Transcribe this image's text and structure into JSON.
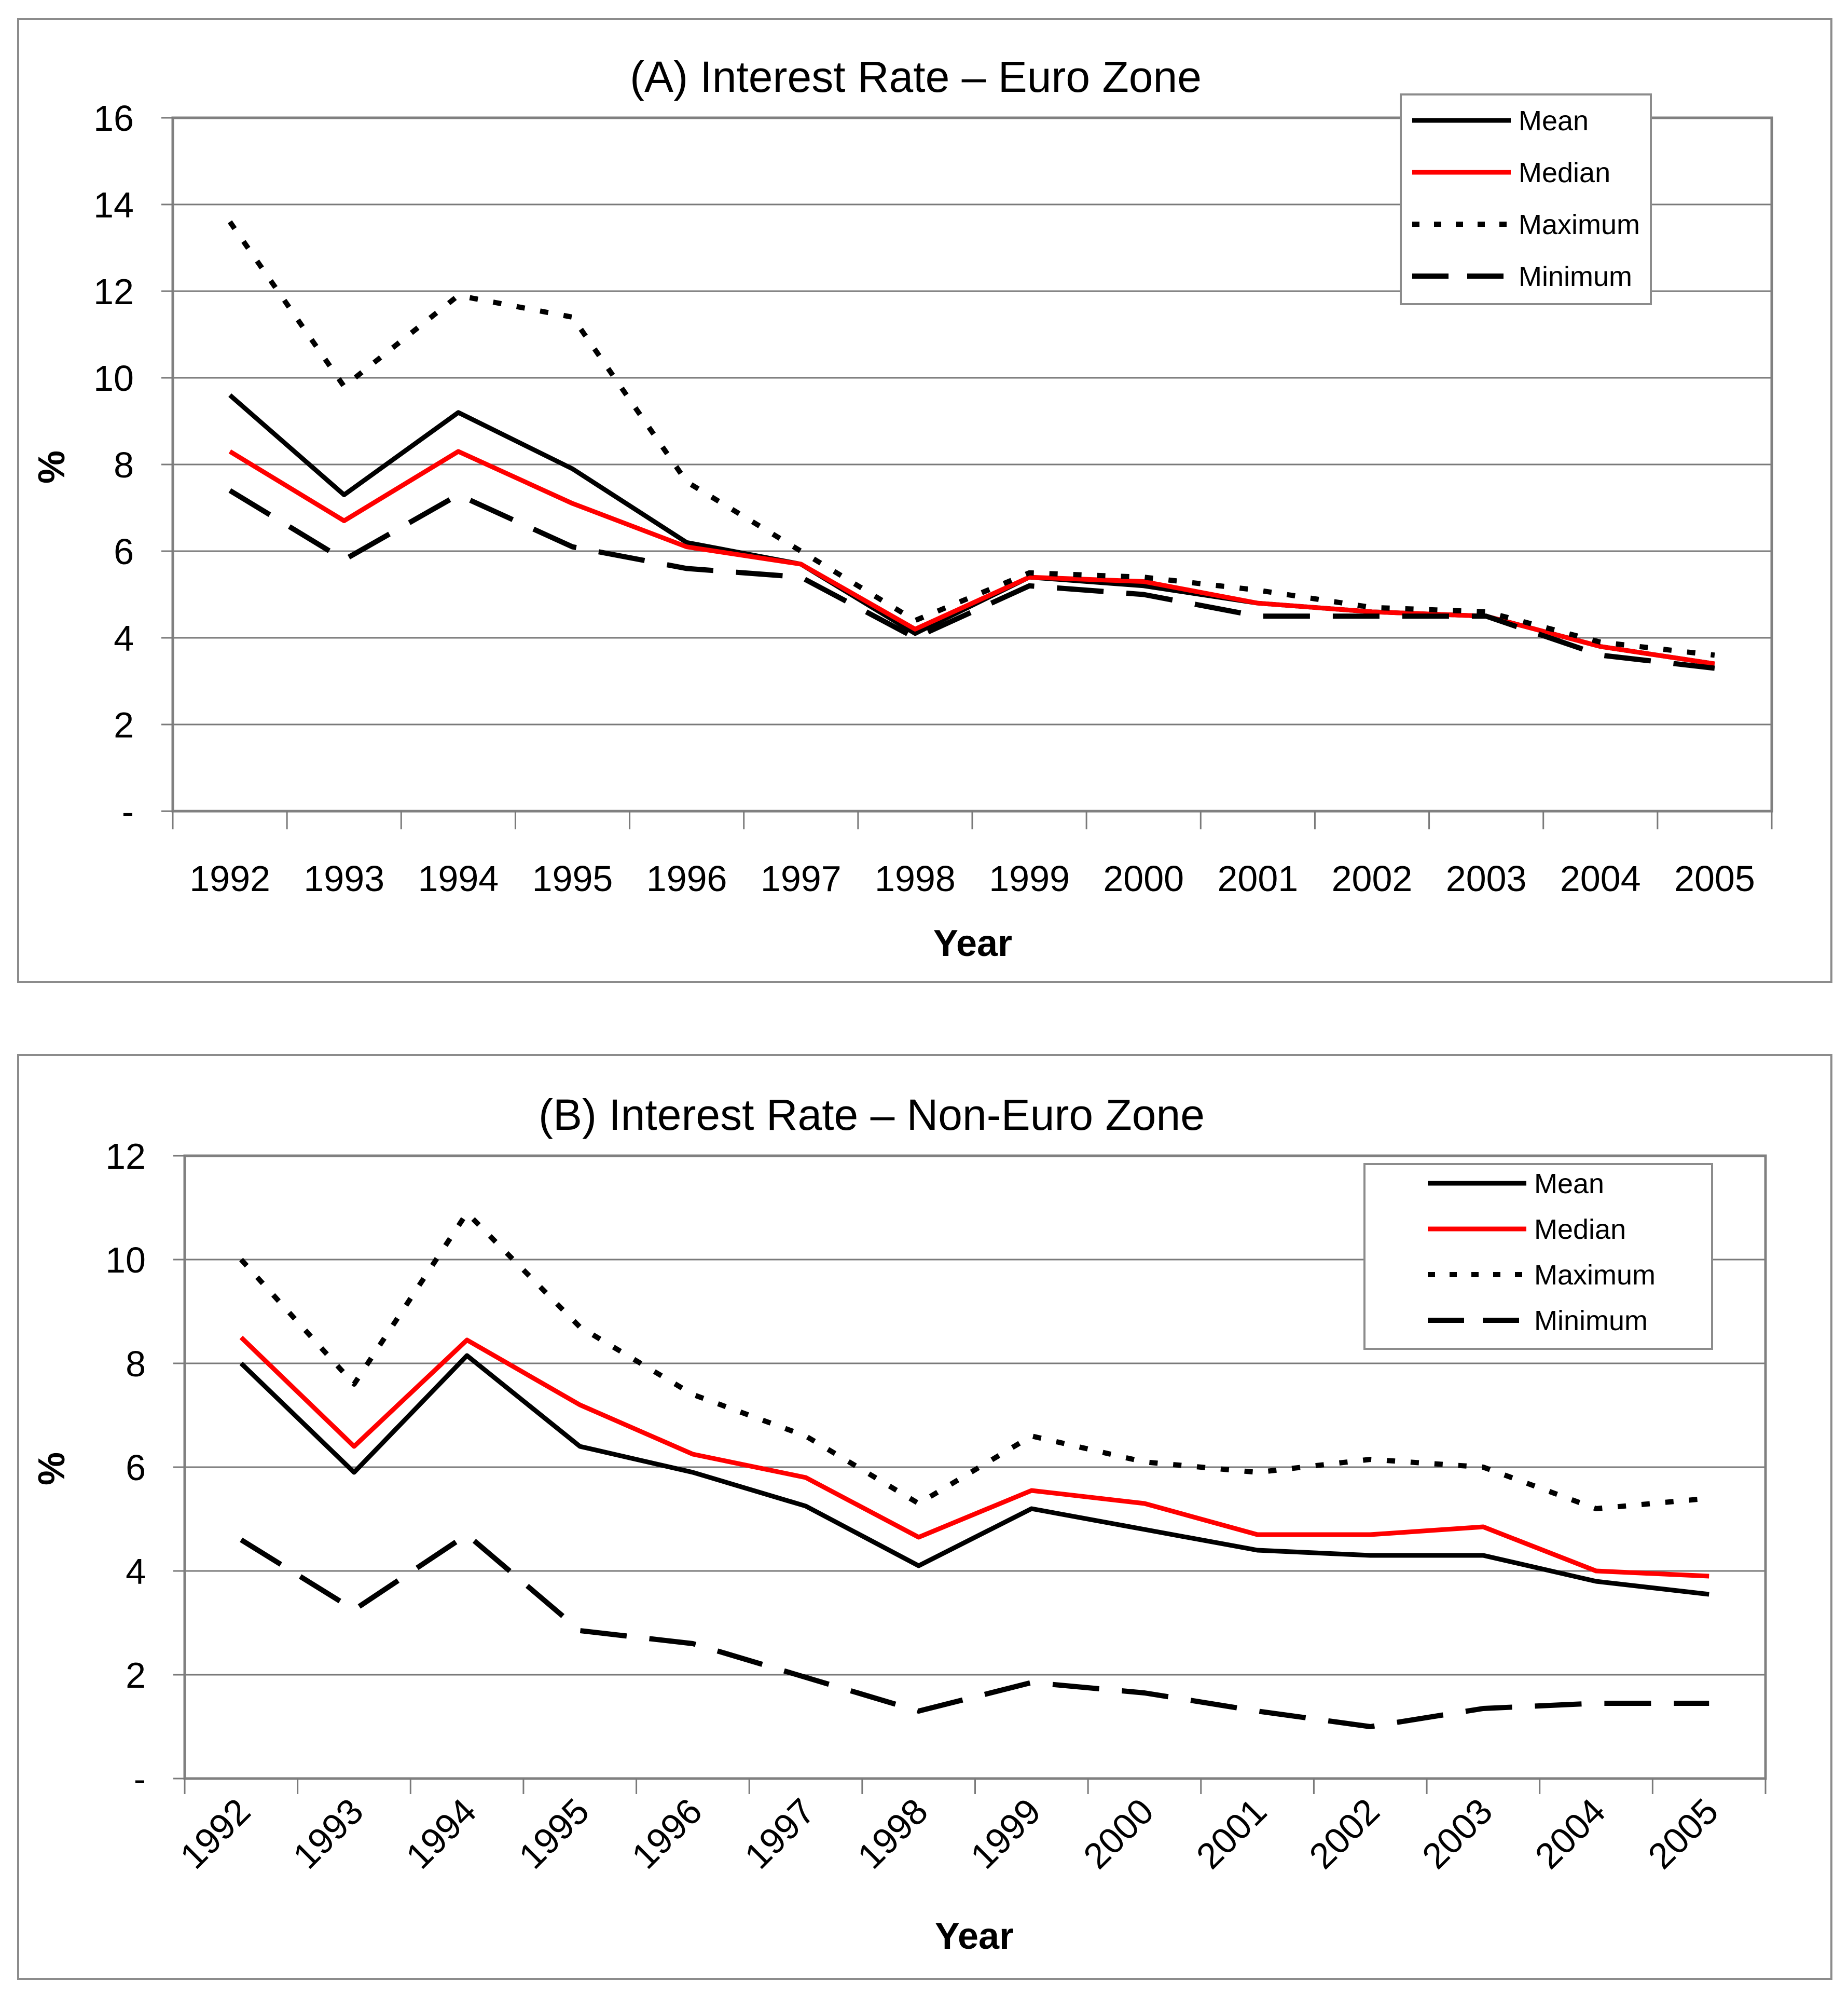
{
  "chart_data": [
    {
      "type": "line",
      "title": "(A) Interest Rate – Euro Zone",
      "xlabel": "Year",
      "ylabel": "%",
      "ylim": [
        0,
        16
      ],
      "yticks": [
        {
          "value": 0,
          "label": "-"
        },
        {
          "value": 2,
          "label": "2"
        },
        {
          "value": 4,
          "label": "4"
        },
        {
          "value": 6,
          "label": "6"
        },
        {
          "value": 8,
          "label": "8"
        },
        {
          "value": 10,
          "label": "10"
        },
        {
          "value": 12,
          "label": "12"
        },
        {
          "value": 14,
          "label": "14"
        },
        {
          "value": 16,
          "label": "16"
        }
      ],
      "categories": [
        "1992",
        "1993",
        "1994",
        "1995",
        "1996",
        "1997",
        "1998",
        "1999",
        "2000",
        "2001",
        "2002",
        "2003",
        "2004",
        "2005"
      ],
      "grid": true,
      "legend_position": "top-right",
      "series": [
        {
          "name": "Mean",
          "style": "solid",
          "color": "#000000",
          "values": [
            9.6,
            7.3,
            9.2,
            7.9,
            6.2,
            5.7,
            4.1,
            5.4,
            5.2,
            4.8,
            4.6,
            4.5,
            3.8,
            3.4
          ]
        },
        {
          "name": "Median",
          "style": "solid",
          "color": "#ff0000",
          "values": [
            8.3,
            6.7,
            8.3,
            7.1,
            6.1,
            5.7,
            4.2,
            5.4,
            5.3,
            4.8,
            4.6,
            4.5,
            3.8,
            3.4
          ]
        },
        {
          "name": "Maximum",
          "style": "dotted",
          "color": "#000000",
          "values": [
            13.6,
            9.8,
            11.9,
            11.4,
            7.6,
            6.0,
            4.4,
            5.5,
            5.4,
            5.1,
            4.7,
            4.6,
            3.9,
            3.6
          ]
        },
        {
          "name": "Minimum",
          "style": "dashed",
          "color": "#000000",
          "values": [
            7.4,
            5.8,
            7.3,
            6.1,
            5.6,
            5.4,
            4.0,
            5.2,
            5.0,
            4.5,
            4.5,
            4.5,
            3.6,
            3.3
          ]
        }
      ]
    },
    {
      "type": "line",
      "title": "(B) Interest Rate – Non-Euro Zone",
      "xlabel": "Year",
      "ylabel": "%",
      "ylim": [
        0,
        12
      ],
      "yticks": [
        {
          "value": 0,
          "label": "-"
        },
        {
          "value": 2,
          "label": "2"
        },
        {
          "value": 4,
          "label": "4"
        },
        {
          "value": 6,
          "label": "6"
        },
        {
          "value": 8,
          "label": "8"
        },
        {
          "value": 10,
          "label": "10"
        },
        {
          "value": 12,
          "label": "12"
        }
      ],
      "categories": [
        "1992",
        "1993",
        "1994",
        "1995",
        "1996",
        "1997",
        "1998",
        "1999",
        "2000",
        "2001",
        "2002",
        "2003",
        "2004",
        "2005"
      ],
      "grid": true,
      "legend_position": "top-right",
      "series": [
        {
          "name": "Mean",
          "style": "solid",
          "color": "#000000",
          "values": [
            8.0,
            5.9,
            8.15,
            6.4,
            5.9,
            5.25,
            4.1,
            5.2,
            4.8,
            4.4,
            4.3,
            4.3,
            3.8,
            3.55
          ]
        },
        {
          "name": "Median",
          "style": "solid",
          "color": "#ff0000",
          "values": [
            8.5,
            6.4,
            8.45,
            7.2,
            6.25,
            5.8,
            4.65,
            5.55,
            5.3,
            4.7,
            4.7,
            4.85,
            4.0,
            3.9
          ]
        },
        {
          "name": "Maximum",
          "style": "dotted",
          "color": "#000000",
          "values": [
            10.0,
            7.6,
            10.9,
            8.7,
            7.4,
            6.6,
            5.3,
            6.6,
            6.1,
            5.9,
            6.15,
            6.0,
            5.2,
            5.4
          ]
        },
        {
          "name": "Minimum",
          "style": "dashed",
          "color": "#000000",
          "values": [
            4.6,
            3.25,
            4.7,
            2.85,
            2.6,
            1.95,
            1.3,
            1.85,
            1.65,
            1.3,
            1.0,
            1.35,
            1.45,
            1.45
          ]
        }
      ]
    }
  ]
}
